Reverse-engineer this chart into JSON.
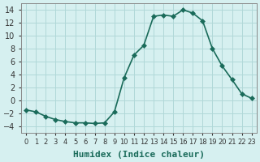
{
  "x": [
    0,
    1,
    2,
    3,
    4,
    5,
    6,
    7,
    8,
    9,
    10,
    11,
    12,
    13,
    14,
    15,
    16,
    17,
    18,
    19,
    20,
    21,
    22,
    23
  ],
  "y": [
    -1.5,
    -1.8,
    -2.5,
    -3.0,
    -3.3,
    -3.5,
    -3.5,
    -3.6,
    -3.5,
    -1.8,
    3.5,
    7.0,
    8.5,
    13.0,
    13.2,
    13.0,
    14.0,
    13.5,
    12.3,
    8.0,
    5.3,
    3.2,
    1.0,
    0.3
  ],
  "line_color": "#1a6b5a",
  "marker": "D",
  "marker_size": 3,
  "bg_color": "#d6f0f0",
  "grid_color": "#b0d8d8",
  "xlabel": "Humidex (Indice chaleur)",
  "xlim": [
    -0.5,
    23.5
  ],
  "ylim": [
    -5,
    15
  ],
  "yticks": [
    -4,
    -2,
    0,
    2,
    4,
    6,
    8,
    10,
    12,
    14
  ],
  "xticks": [
    0,
    1,
    2,
    3,
    4,
    5,
    6,
    7,
    8,
    9,
    10,
    11,
    12,
    13,
    14,
    15,
    16,
    17,
    18,
    19,
    20,
    21,
    22,
    23
  ],
  "xtick_display": [
    "0",
    "1",
    "2",
    "3",
    "4",
    "5",
    "6",
    "7",
    "8",
    "9",
    "10",
    "11",
    "12",
    "13",
    "14",
    "15",
    "16",
    "17",
    "18",
    "19",
    "20",
    "21",
    "22",
    "23"
  ],
  "line_width": 1.2,
  "xlabel_fontsize": 8,
  "tick_fontsize": 7,
  "xlabel_color": "#1a6b5a",
  "spine_color": "#888888"
}
